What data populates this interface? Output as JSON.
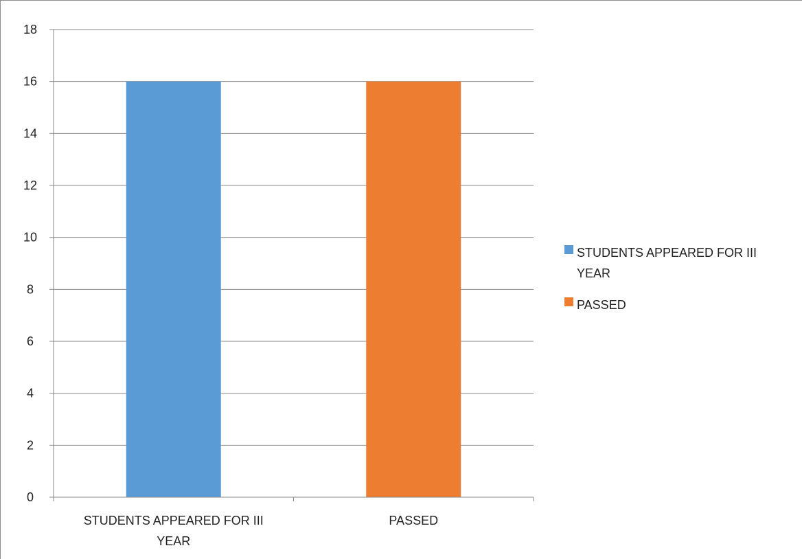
{
  "chart_data": {
    "type": "bar",
    "categories": [
      "STUDENTS APPEARED FOR III YEAR",
      "PASSED"
    ],
    "category_label_lines": [
      [
        "STUDENTS APPEARED FOR III",
        "YEAR"
      ],
      [
        "PASSED"
      ]
    ],
    "values": [
      16,
      16
    ],
    "colors": [
      "#5b9bd5",
      "#ed7d31"
    ],
    "ylim": [
      0,
      18
    ],
    "yticks": [
      0,
      2,
      4,
      6,
      8,
      10,
      12,
      14,
      16,
      18
    ],
    "grid": true,
    "legend_position": "right",
    "legend": [
      {
        "label_lines": [
          "STUDENTS APPEARED FOR III",
          "YEAR"
        ],
        "color": "#5b9bd5"
      },
      {
        "label_lines": [
          "PASSED"
        ],
        "color": "#ed7d31"
      }
    ]
  }
}
